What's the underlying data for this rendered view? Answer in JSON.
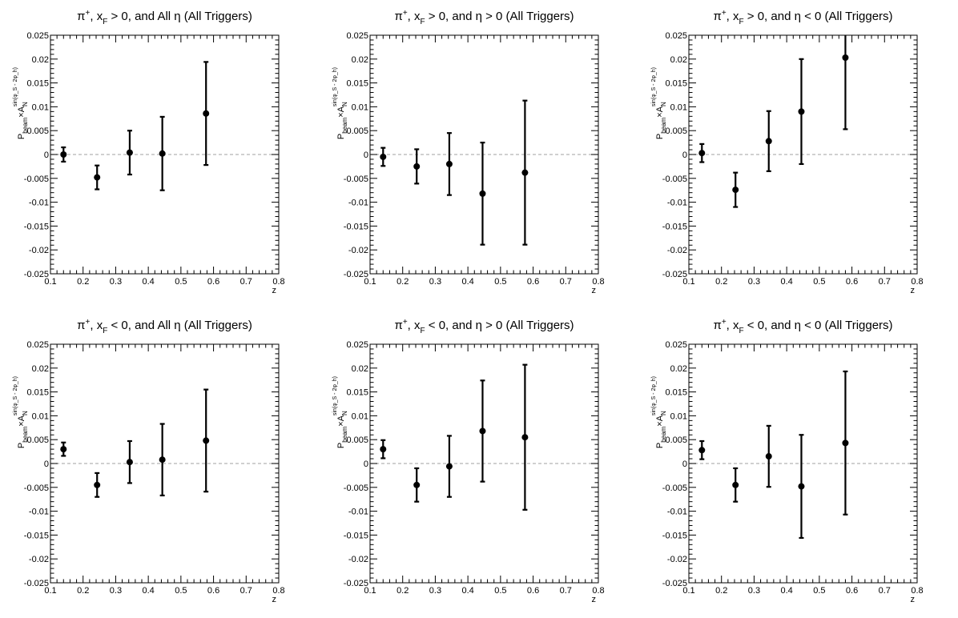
{
  "chart_data": [
    {
      "type": "scatter",
      "title": {
        "particle": "π",
        "charge": "+",
        "x": "x",
        "x_sub": "F",
        "cond_xf": " > 0, and ",
        "eta_part": "All η",
        "suffix": " (All Triggers)"
      },
      "xlabel": "z",
      "ylabel": {
        "p": "P",
        "p_sub": "beam",
        "times": "×A",
        "a_sub": "N",
        "a_sup": "sin(φ_S - 2φ_h)"
      },
      "xlim": [
        0.1,
        0.8
      ],
      "ylim": [
        -0.025,
        0.025
      ],
      "x_ticks": [
        "0.1",
        "0.2",
        "0.3",
        "0.4",
        "0.5",
        "0.6",
        "0.7",
        "0.8"
      ],
      "y_ticks": [
        "-0.025",
        "-0.02",
        "-0.015",
        "-0.01",
        "-0.005",
        "0",
        "0.005",
        "0.01",
        "0.015",
        "0.02",
        "0.025"
      ],
      "reference_line": 0,
      "points": [
        {
          "x": 0.14,
          "y": 0.0,
          "err": 0.0015
        },
        {
          "x": 0.243,
          "y": -0.0048,
          "err": 0.0025
        },
        {
          "x": 0.343,
          "y": 0.0004,
          "err": 0.0046
        },
        {
          "x": 0.443,
          "y": 0.0002,
          "err": 0.0077
        },
        {
          "x": 0.577,
          "y": 0.0086,
          "err": 0.0108
        }
      ]
    },
    {
      "type": "scatter",
      "title": {
        "particle": "π",
        "charge": "+",
        "x": "x",
        "x_sub": "F",
        "cond_xf": " > 0, and ",
        "eta_part": "η > 0",
        "suffix": " (All Triggers)"
      },
      "xlabel": "z",
      "ylabel": {
        "p": "P",
        "p_sub": "beam",
        "times": "×A",
        "a_sub": "N",
        "a_sup": "sin(φ_S - 2φ_h)"
      },
      "xlim": [
        0.1,
        0.8
      ],
      "ylim": [
        -0.025,
        0.025
      ],
      "x_ticks": [
        "0.1",
        "0.2",
        "0.3",
        "0.4",
        "0.5",
        "0.6",
        "0.7",
        "0.8"
      ],
      "y_ticks": [
        "-0.025",
        "-0.02",
        "-0.015",
        "-0.01",
        "-0.005",
        "0",
        "0.005",
        "0.01",
        "0.015",
        "0.02",
        "0.025"
      ],
      "reference_line": 0,
      "points": [
        {
          "x": 0.14,
          "y": -0.0005,
          "err": 0.0019
        },
        {
          "x": 0.243,
          "y": -0.0025,
          "err": 0.0036
        },
        {
          "x": 0.343,
          "y": -0.002,
          "err": 0.0065
        },
        {
          "x": 0.445,
          "y": -0.0082,
          "err": 0.0107
        },
        {
          "x": 0.575,
          "y": -0.0038,
          "err": 0.0151
        }
      ]
    },
    {
      "type": "scatter",
      "title": {
        "particle": "π",
        "charge": "+",
        "x": "x",
        "x_sub": "F",
        "cond_xf": " > 0, and ",
        "eta_part": "η < 0",
        "suffix": " (All Triggers)"
      },
      "xlabel": "z",
      "ylabel": {
        "p": "P",
        "p_sub": "beam",
        "times": "×A",
        "a_sub": "N",
        "a_sup": "sin(φ_S - 2φ_h)"
      },
      "xlim": [
        0.1,
        0.8
      ],
      "ylim": [
        -0.025,
        0.025
      ],
      "x_ticks": [
        "0.1",
        "0.2",
        "0.3",
        "0.4",
        "0.5",
        "0.6",
        "0.7",
        "0.8"
      ],
      "y_ticks": [
        "-0.025",
        "-0.02",
        "-0.015",
        "-0.01",
        "-0.005",
        "0",
        "0.005",
        "0.01",
        "0.015",
        "0.02",
        "0.025"
      ],
      "reference_line": 0,
      "points": [
        {
          "x": 0.14,
          "y": 0.0003,
          "err": 0.0019
        },
        {
          "x": 0.243,
          "y": -0.0074,
          "err": 0.0036
        },
        {
          "x": 0.345,
          "y": 0.0028,
          "err": 0.0063
        },
        {
          "x": 0.445,
          "y": 0.009,
          "err": 0.011
        },
        {
          "x": 0.58,
          "y": 0.0203,
          "err": 0.015
        }
      ]
    },
    {
      "type": "scatter",
      "title": {
        "particle": "π",
        "charge": "+",
        "x": "x",
        "x_sub": "F",
        "cond_xf": " < 0, and ",
        "eta_part": "All η",
        "suffix": " (All Triggers)"
      },
      "xlabel": "z",
      "ylabel": {
        "p": "P",
        "p_sub": "beam",
        "times": "×A",
        "a_sub": "N",
        "a_sup": "sin(φ_S - 2φ_h)"
      },
      "xlim": [
        0.1,
        0.8
      ],
      "ylim": [
        -0.025,
        0.025
      ],
      "x_ticks": [
        "0.1",
        "0.2",
        "0.3",
        "0.4",
        "0.5",
        "0.6",
        "0.7",
        "0.8"
      ],
      "y_ticks": [
        "-0.025",
        "-0.02",
        "-0.015",
        "-0.01",
        "-0.005",
        "0",
        "0.005",
        "0.01",
        "0.015",
        "0.02",
        "0.025"
      ],
      "reference_line": 0,
      "points": [
        {
          "x": 0.14,
          "y": 0.003,
          "err": 0.0014
        },
        {
          "x": 0.243,
          "y": -0.0045,
          "err": 0.0025
        },
        {
          "x": 0.343,
          "y": 0.0003,
          "err": 0.0044
        },
        {
          "x": 0.443,
          "y": 0.0008,
          "err": 0.0075
        },
        {
          "x": 0.577,
          "y": 0.0048,
          "err": 0.0107
        }
      ]
    },
    {
      "type": "scatter",
      "title": {
        "particle": "π",
        "charge": "+",
        "x": "x",
        "x_sub": "F",
        "cond_xf": " < 0, and ",
        "eta_part": "η > 0",
        "suffix": " (All Triggers)"
      },
      "xlabel": "z",
      "ylabel": {
        "p": "P",
        "p_sub": "beam",
        "times": "×A",
        "a_sub": "N",
        "a_sup": "sin(φ_S - 2φ_h)"
      },
      "xlim": [
        0.1,
        0.8
      ],
      "ylim": [
        -0.025,
        0.025
      ],
      "x_ticks": [
        "0.1",
        "0.2",
        "0.3",
        "0.4",
        "0.5",
        "0.6",
        "0.7",
        "0.8"
      ],
      "y_ticks": [
        "-0.025",
        "-0.02",
        "-0.015",
        "-0.01",
        "-0.005",
        "0",
        "0.005",
        "0.01",
        "0.015",
        "0.02",
        "0.025"
      ],
      "reference_line": 0,
      "points": [
        {
          "x": 0.14,
          "y": 0.003,
          "err": 0.0019
        },
        {
          "x": 0.243,
          "y": -0.0045,
          "err": 0.0035
        },
        {
          "x": 0.343,
          "y": -0.0006,
          "err": 0.0064
        },
        {
          "x": 0.445,
          "y": 0.0068,
          "err": 0.0106
        },
        {
          "x": 0.575,
          "y": 0.0055,
          "err": 0.0152
        }
      ]
    },
    {
      "type": "scatter",
      "title": {
        "particle": "π",
        "charge": "+",
        "x": "x",
        "x_sub": "F",
        "cond_xf": " < 0, and ",
        "eta_part": "η < 0",
        "suffix": " (All Triggers)"
      },
      "xlabel": "z",
      "ylabel": {
        "p": "P",
        "p_sub": "beam",
        "times": "×A",
        "a_sub": "N",
        "a_sup": "sin(φ_S - 2φ_h)"
      },
      "xlim": [
        0.1,
        0.8
      ],
      "ylim": [
        -0.025,
        0.025
      ],
      "x_ticks": [
        "0.1",
        "0.2",
        "0.3",
        "0.4",
        "0.5",
        "0.6",
        "0.7",
        "0.8"
      ],
      "y_ticks": [
        "-0.025",
        "-0.02",
        "-0.015",
        "-0.01",
        "-0.005",
        "0",
        "0.005",
        "0.01",
        "0.015",
        "0.02",
        "0.025"
      ],
      "reference_line": 0,
      "points": [
        {
          "x": 0.14,
          "y": 0.0028,
          "err": 0.0019
        },
        {
          "x": 0.243,
          "y": -0.0045,
          "err": 0.0035
        },
        {
          "x": 0.345,
          "y": 0.0015,
          "err": 0.0064
        },
        {
          "x": 0.445,
          "y": -0.0048,
          "err": 0.0108
        },
        {
          "x": 0.58,
          "y": 0.0043,
          "err": 0.015
        }
      ]
    }
  ]
}
